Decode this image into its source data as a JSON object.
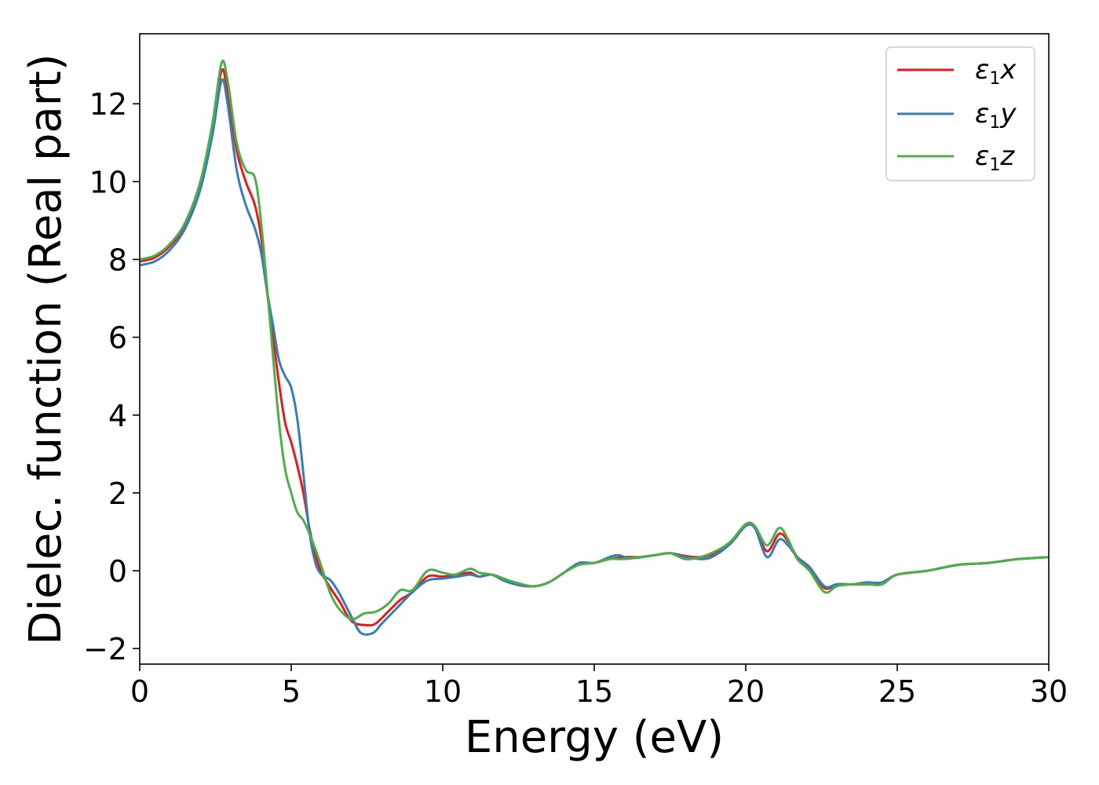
{
  "chart_data": {
    "type": "line",
    "xlabel": "Energy (eV)",
    "ylabel": "Dielec. function (Real part)",
    "xlim": [
      0,
      30
    ],
    "ylim": [
      -2.4,
      13.8
    ],
    "xticks": [
      0,
      5,
      10,
      15,
      20,
      25,
      30
    ],
    "yticks": [
      -2,
      0,
      2,
      4,
      6,
      8,
      10,
      12
    ],
    "ytick_labels": [
      "−2",
      "0",
      "2",
      "4",
      "6",
      "8",
      "10",
      "12"
    ],
    "grid": false,
    "legend_position": "top-right",
    "series": [
      {
        "name": "ε₁x",
        "legend_base": "ε",
        "legend_sub": "1",
        "legend_var": "x",
        "color": "#e41a1c",
        "points": [
          [
            0,
            7.95
          ],
          [
            0.5,
            8.05
          ],
          [
            1,
            8.35
          ],
          [
            1.5,
            8.9
          ],
          [
            2,
            9.9
          ],
          [
            2.4,
            11.4
          ],
          [
            2.7,
            12.85
          ],
          [
            2.9,
            12.3
          ],
          [
            3.2,
            10.8
          ],
          [
            3.5,
            10.0
          ],
          [
            3.8,
            9.4
          ],
          [
            4.0,
            8.6
          ],
          [
            4.2,
            7.2
          ],
          [
            4.4,
            6.0
          ],
          [
            4.6,
            4.8
          ],
          [
            4.8,
            3.8
          ],
          [
            5.0,
            3.3
          ],
          [
            5.2,
            2.7
          ],
          [
            5.4,
            2.0
          ],
          [
            5.6,
            1.1
          ],
          [
            5.8,
            0.4
          ],
          [
            6.0,
            -0.05
          ],
          [
            6.3,
            -0.45
          ],
          [
            6.6,
            -0.8
          ],
          [
            7.0,
            -1.3
          ],
          [
            7.5,
            -1.4
          ],
          [
            7.8,
            -1.35
          ],
          [
            8.2,
            -1.05
          ],
          [
            8.6,
            -0.75
          ],
          [
            9.0,
            -0.55
          ],
          [
            9.5,
            -0.15
          ],
          [
            10,
            -0.15
          ],
          [
            10.5,
            -0.1
          ],
          [
            10.9,
            -0.05
          ],
          [
            11.2,
            -0.15
          ],
          [
            11.6,
            -0.1
          ],
          [
            12,
            -0.2
          ],
          [
            12.4,
            -0.35
          ],
          [
            13,
            -0.4
          ],
          [
            13.5,
            -0.3
          ],
          [
            14,
            -0.05
          ],
          [
            14.5,
            0.2
          ],
          [
            15,
            0.2
          ],
          [
            15.5,
            0.3
          ],
          [
            16,
            0.35
          ],
          [
            16.5,
            0.35
          ],
          [
            17,
            0.4
          ],
          [
            17.5,
            0.45
          ],
          [
            18,
            0.38
          ],
          [
            18.5,
            0.35
          ],
          [
            19,
            0.45
          ],
          [
            19.5,
            0.7
          ],
          [
            20,
            1.15
          ],
          [
            20.3,
            1.1
          ],
          [
            20.7,
            0.5
          ],
          [
            21.1,
            0.95
          ],
          [
            21.4,
            0.75
          ],
          [
            21.7,
            0.35
          ],
          [
            22.1,
            0.05
          ],
          [
            22.6,
            -0.45
          ],
          [
            23,
            -0.35
          ],
          [
            23.5,
            -0.35
          ],
          [
            24,
            -0.35
          ],
          [
            24.5,
            -0.3
          ],
          [
            25,
            -0.1
          ],
          [
            26,
            0.0
          ],
          [
            27,
            0.15
          ],
          [
            28,
            0.2
          ],
          [
            29,
            0.3
          ],
          [
            30,
            0.35
          ]
        ]
      },
      {
        "name": "ε₁y",
        "legend_base": "ε",
        "legend_sub": "1",
        "legend_var": "y",
        "color": "#377eb8",
        "points": [
          [
            0,
            7.85
          ],
          [
            0.5,
            7.95
          ],
          [
            1,
            8.25
          ],
          [
            1.5,
            8.8
          ],
          [
            2,
            9.8
          ],
          [
            2.4,
            11.2
          ],
          [
            2.7,
            12.6
          ],
          [
            2.9,
            12.0
          ],
          [
            3.2,
            10.3
          ],
          [
            3.5,
            9.4
          ],
          [
            3.8,
            8.8
          ],
          [
            4.0,
            8.2
          ],
          [
            4.2,
            7.2
          ],
          [
            4.4,
            6.3
          ],
          [
            4.6,
            5.4
          ],
          [
            4.8,
            5.0
          ],
          [
            5.0,
            4.7
          ],
          [
            5.2,
            3.9
          ],
          [
            5.4,
            2.5
          ],
          [
            5.6,
            1.0
          ],
          [
            5.8,
            0.2
          ],
          [
            6.0,
            -0.1
          ],
          [
            6.3,
            -0.25
          ],
          [
            6.6,
            -0.6
          ],
          [
            7.0,
            -1.2
          ],
          [
            7.3,
            -1.6
          ],
          [
            7.7,
            -1.6
          ],
          [
            8.0,
            -1.35
          ],
          [
            8.5,
            -0.95
          ],
          [
            9.0,
            -0.55
          ],
          [
            9.5,
            -0.25
          ],
          [
            10,
            -0.2
          ],
          [
            10.5,
            -0.15
          ],
          [
            10.9,
            -0.1
          ],
          [
            11.2,
            -0.15
          ],
          [
            11.6,
            -0.1
          ],
          [
            12,
            -0.25
          ],
          [
            12.4,
            -0.35
          ],
          [
            13,
            -0.4
          ],
          [
            13.5,
            -0.3
          ],
          [
            14,
            -0.05
          ],
          [
            14.5,
            0.2
          ],
          [
            15,
            0.2
          ],
          [
            15.5,
            0.35
          ],
          [
            15.8,
            0.4
          ],
          [
            16.2,
            0.32
          ],
          [
            17,
            0.4
          ],
          [
            17.5,
            0.45
          ],
          [
            18,
            0.35
          ],
          [
            18.6,
            0.3
          ],
          [
            19,
            0.4
          ],
          [
            19.5,
            0.7
          ],
          [
            20,
            1.15
          ],
          [
            20.3,
            1.1
          ],
          [
            20.7,
            0.35
          ],
          [
            21.1,
            0.8
          ],
          [
            21.4,
            0.65
          ],
          [
            21.7,
            0.35
          ],
          [
            22.1,
            0.1
          ],
          [
            22.6,
            -0.4
          ],
          [
            23,
            -0.35
          ],
          [
            23.5,
            -0.35
          ],
          [
            24,
            -0.3
          ],
          [
            24.5,
            -0.3
          ],
          [
            25,
            -0.1
          ],
          [
            26,
            0.0
          ],
          [
            27,
            0.15
          ],
          [
            28,
            0.2
          ],
          [
            29,
            0.3
          ],
          [
            30,
            0.35
          ]
        ]
      },
      {
        "name": "ε₁z",
        "legend_base": "ε",
        "legend_sub": "1",
        "legend_var": "z",
        "color": "#4daf4a",
        "points": [
          [
            0,
            8.0
          ],
          [
            0.5,
            8.1
          ],
          [
            1,
            8.4
          ],
          [
            1.5,
            8.95
          ],
          [
            2,
            10.0
          ],
          [
            2.4,
            11.5
          ],
          [
            2.7,
            13.05
          ],
          [
            2.9,
            12.6
          ],
          [
            3.2,
            11.0
          ],
          [
            3.5,
            10.3
          ],
          [
            3.8,
            10.1
          ],
          [
            4.0,
            9.0
          ],
          [
            4.2,
            7.3
          ],
          [
            4.4,
            5.5
          ],
          [
            4.6,
            3.8
          ],
          [
            4.8,
            2.6
          ],
          [
            5.0,
            2.0
          ],
          [
            5.2,
            1.5
          ],
          [
            5.4,
            1.3
          ],
          [
            5.6,
            0.95
          ],
          [
            5.8,
            0.55
          ],
          [
            6.0,
            0.1
          ],
          [
            6.3,
            -0.6
          ],
          [
            6.6,
            -1.0
          ],
          [
            7.0,
            -1.25
          ],
          [
            7.4,
            -1.1
          ],
          [
            7.8,
            -1.05
          ],
          [
            8.2,
            -0.85
          ],
          [
            8.6,
            -0.5
          ],
          [
            9.0,
            -0.5
          ],
          [
            9.5,
            0.0
          ],
          [
            10,
            -0.05
          ],
          [
            10.4,
            -0.1
          ],
          [
            10.9,
            0.05
          ],
          [
            11.2,
            -0.05
          ],
          [
            11.6,
            -0.1
          ],
          [
            12,
            -0.2
          ],
          [
            12.4,
            -0.3
          ],
          [
            13,
            -0.4
          ],
          [
            13.5,
            -0.3
          ],
          [
            14,
            -0.05
          ],
          [
            14.5,
            0.15
          ],
          [
            15,
            0.2
          ],
          [
            15.5,
            0.3
          ],
          [
            16,
            0.3
          ],
          [
            16.5,
            0.35
          ],
          [
            17,
            0.4
          ],
          [
            17.5,
            0.45
          ],
          [
            18,
            0.3
          ],
          [
            18.5,
            0.35
          ],
          [
            19,
            0.5
          ],
          [
            19.5,
            0.75
          ],
          [
            20,
            1.2
          ],
          [
            20.3,
            1.15
          ],
          [
            20.7,
            0.65
          ],
          [
            21.1,
            1.1
          ],
          [
            21.4,
            0.8
          ],
          [
            21.7,
            0.3
          ],
          [
            22.1,
            0.0
          ],
          [
            22.6,
            -0.55
          ],
          [
            23,
            -0.4
          ],
          [
            23.5,
            -0.35
          ],
          [
            24,
            -0.35
          ],
          [
            24.5,
            -0.35
          ],
          [
            25,
            -0.1
          ],
          [
            26,
            0.0
          ],
          [
            27,
            0.15
          ],
          [
            28,
            0.2
          ],
          [
            29,
            0.3
          ],
          [
            30,
            0.35
          ]
        ]
      }
    ]
  }
}
